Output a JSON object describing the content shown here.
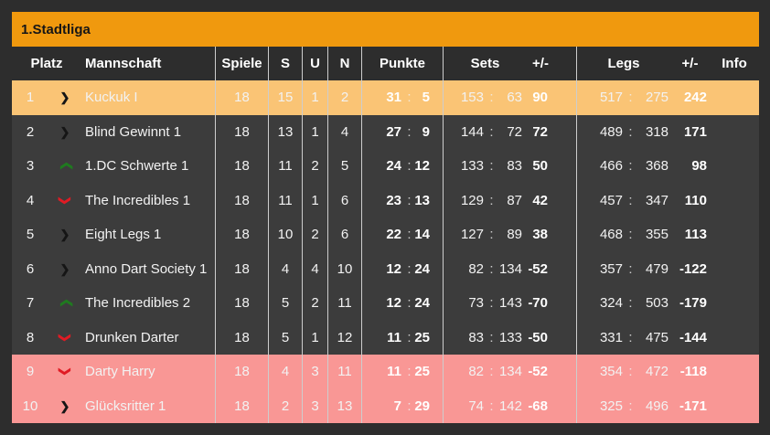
{
  "title": "1.Stadtliga",
  "columns": {
    "platz": "Platz",
    "mannschaft": "Mannschaft",
    "spiele": "Spiele",
    "s": "S",
    "u": "U",
    "n": "N",
    "punkte": "Punkte",
    "sets": "Sets",
    "sets_diff": "+/-",
    "legs": "Legs",
    "legs_diff": "+/-",
    "info": "Info"
  },
  "colon": ":",
  "icons": {
    "right": {
      "glyph": "❯",
      "name": "chevron-right-icon"
    },
    "up": {
      "glyph": "❯",
      "name": "chevron-up-icon"
    },
    "down": {
      "glyph": "❯",
      "name": "chevron-down-icon"
    }
  },
  "colors": {
    "page_bg": "#2d2d2d",
    "row_bg": "#3c3c3c",
    "title_bar": "#f0990e",
    "promotion_row": "#fac475",
    "relegation_row": "#f99795",
    "separator": "#cdcdcd",
    "trend_up": "#1f7a1f",
    "trend_down": "#e01b24",
    "trend_steady": "#151515"
  },
  "rows": [
    {
      "platz": "1",
      "trend": "right",
      "team": "Kuckuk I",
      "spiele": "18",
      "s": "15",
      "u": "1",
      "n": "2",
      "punkte_for": "31",
      "punkte_against": "5",
      "sets_for": "153",
      "sets_against": "63",
      "sets_diff": "90",
      "legs_for": "517",
      "legs_against": "275",
      "legs_diff": "242",
      "info": "",
      "highlight": "promotion"
    },
    {
      "platz": "2",
      "trend": "right",
      "team": "Blind Gewinnt 1",
      "spiele": "18",
      "s": "13",
      "u": "1",
      "n": "4",
      "punkte_for": "27",
      "punkte_against": "9",
      "sets_for": "144",
      "sets_against": "72",
      "sets_diff": "72",
      "legs_for": "489",
      "legs_against": "318",
      "legs_diff": "171",
      "info": "",
      "highlight": "none"
    },
    {
      "platz": "3",
      "trend": "up",
      "team": "1.DC Schwerte 1",
      "spiele": "18",
      "s": "11",
      "u": "2",
      "n": "5",
      "punkte_for": "24",
      "punkte_against": "12",
      "sets_for": "133",
      "sets_against": "83",
      "sets_diff": "50",
      "legs_for": "466",
      "legs_against": "368",
      "legs_diff": "98",
      "info": "",
      "highlight": "none"
    },
    {
      "platz": "4",
      "trend": "down",
      "team": "The Incredibles 1",
      "spiele": "18",
      "s": "11",
      "u": "1",
      "n": "6",
      "punkte_for": "23",
      "punkte_against": "13",
      "sets_for": "129",
      "sets_against": "87",
      "sets_diff": "42",
      "legs_for": "457",
      "legs_against": "347",
      "legs_diff": "110",
      "info": "",
      "highlight": "none"
    },
    {
      "platz": "5",
      "trend": "right",
      "team": "Eight Legs 1",
      "spiele": "18",
      "s": "10",
      "u": "2",
      "n": "6",
      "punkte_for": "22",
      "punkte_against": "14",
      "sets_for": "127",
      "sets_against": "89",
      "sets_diff": "38",
      "legs_for": "468",
      "legs_against": "355",
      "legs_diff": "113",
      "info": "",
      "highlight": "none"
    },
    {
      "platz": "6",
      "trend": "right",
      "team": "Anno Dart Society 1",
      "spiele": "18",
      "s": "4",
      "u": "4",
      "n": "10",
      "punkte_for": "12",
      "punkte_against": "24",
      "sets_for": "82",
      "sets_against": "134",
      "sets_diff": "-52",
      "legs_for": "357",
      "legs_against": "479",
      "legs_diff": "-122",
      "info": "",
      "highlight": "none"
    },
    {
      "platz": "7",
      "trend": "up",
      "team": "The Incredibles 2",
      "spiele": "18",
      "s": "5",
      "u": "2",
      "n": "11",
      "punkte_for": "12",
      "punkte_against": "24",
      "sets_for": "73",
      "sets_against": "143",
      "sets_diff": "-70",
      "legs_for": "324",
      "legs_against": "503",
      "legs_diff": "-179",
      "info": "",
      "highlight": "none"
    },
    {
      "platz": "8",
      "trend": "down",
      "team": "Drunken Darter",
      "spiele": "18",
      "s": "5",
      "u": "1",
      "n": "12",
      "punkte_for": "11",
      "punkte_against": "25",
      "sets_for": "83",
      "sets_against": "133",
      "sets_diff": "-50",
      "legs_for": "331",
      "legs_against": "475",
      "legs_diff": "-144",
      "info": "",
      "highlight": "none"
    },
    {
      "platz": "9",
      "trend": "down",
      "team": "Darty Harry",
      "spiele": "18",
      "s": "4",
      "u": "3",
      "n": "11",
      "punkte_for": "11",
      "punkte_against": "25",
      "sets_for": "82",
      "sets_against": "134",
      "sets_diff": "-52",
      "legs_for": "354",
      "legs_against": "472",
      "legs_diff": "-118",
      "info": "",
      "highlight": "relegation"
    },
    {
      "platz": "10",
      "trend": "right",
      "team": "Glücksritter 1",
      "spiele": "18",
      "s": "2",
      "u": "3",
      "n": "13",
      "punkte_for": "7",
      "punkte_against": "29",
      "sets_for": "74",
      "sets_against": "142",
      "sets_diff": "-68",
      "legs_for": "325",
      "legs_against": "496",
      "legs_diff": "-171",
      "info": "",
      "highlight": "relegation"
    }
  ]
}
